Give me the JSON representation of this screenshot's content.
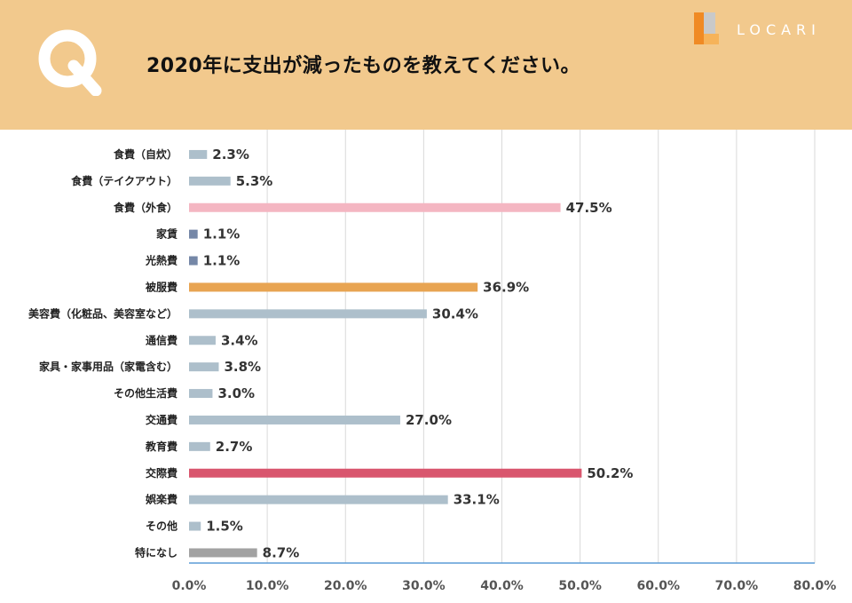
{
  "header": {
    "question": "2020年に支出が減ったものを教えてください。",
    "q_letter": "Q",
    "logo_text": "LOCARI"
  },
  "colors": {
    "header_bg": "#f2c98d",
    "default_bar": "#adbfcb",
    "dark_bar": "#7587a7",
    "pink_bar": "#f4b6c2",
    "orange_bar": "#e8a452",
    "red_bar": "#d9566e",
    "gray_bar": "#a2a2a2",
    "logo_orange": "#f08a24",
    "logo_gray": "#c9c9c9"
  },
  "chart_data": {
    "type": "bar",
    "orientation": "horizontal",
    "categories": [
      "食費（自炊）",
      "食費（テイクアウト）",
      "食費（外食）",
      "家賃",
      "光熱費",
      "被服費",
      "美容費（化粧品、美容室など）",
      "通信費",
      "家具・家事用品（家電含む）",
      "その他生活費",
      "交通費",
      "教育費",
      "交際費",
      "娯楽費",
      "その他",
      "特になし"
    ],
    "values": [
      2.3,
      5.3,
      47.5,
      1.1,
      1.1,
      36.9,
      30.4,
      3.4,
      3.8,
      3.0,
      27.0,
      2.7,
      50.2,
      33.1,
      1.5,
      8.7
    ],
    "data_labels": [
      "2.3%",
      "5.3%",
      "47.5%",
      "1.1%",
      "1.1%",
      "36.9%",
      "30.4%",
      "3.4%",
      "3.8%",
      "3.0%",
      "27.0%",
      "2.7%",
      "50.2%",
      "33.1%",
      "1.5%",
      "8.7%"
    ],
    "bar_colors": [
      "#adbfcb",
      "#adbfcb",
      "#f4b6c2",
      "#7587a7",
      "#7587a7",
      "#e8a452",
      "#adbfcb",
      "#adbfcb",
      "#adbfcb",
      "#adbfcb",
      "#adbfcb",
      "#adbfcb",
      "#d9566e",
      "#adbfcb",
      "#adbfcb",
      "#a2a2a2"
    ],
    "x_ticks": [
      "0.0%",
      "10.0%",
      "20.0%",
      "30.0%",
      "40.0%",
      "50.0%",
      "60.0%",
      "70.0%",
      "80.0%"
    ],
    "xlim": [
      0,
      80
    ],
    "grid": true,
    "legend": "none"
  }
}
